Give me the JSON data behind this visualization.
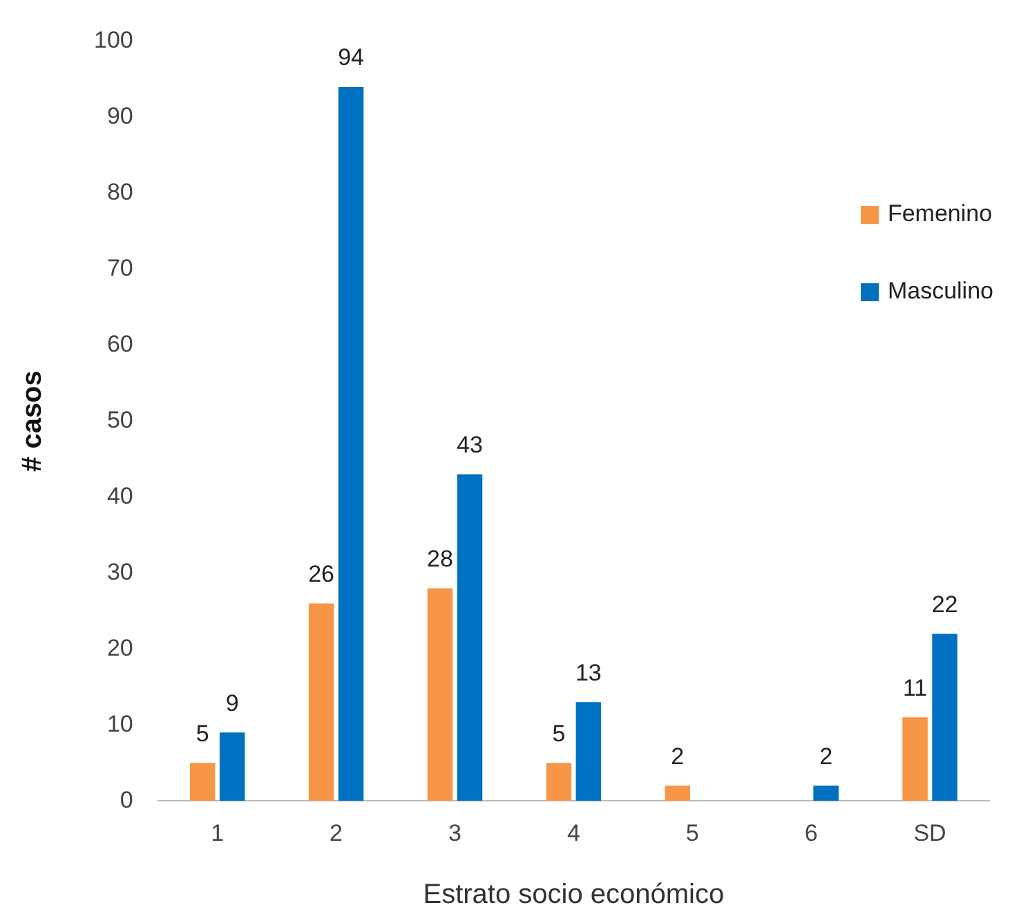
{
  "chart_data": {
    "type": "bar",
    "xlabel": "Estrato socio económico",
    "ylabel": "# casos",
    "categories": [
      "1",
      "2",
      "3",
      "4",
      "5",
      "6",
      "SD"
    ],
    "series": [
      {
        "name": "Femenino",
        "color": "#f79646",
        "values": [
          5,
          26,
          28,
          5,
          2,
          null,
          11
        ]
      },
      {
        "name": "Masculino",
        "color": "#0070c0",
        "values": [
          9,
          94,
          43,
          13,
          null,
          2,
          22
        ]
      }
    ],
    "ylim": [
      0,
      100
    ],
    "yticks": [
      0,
      10,
      20,
      30,
      40,
      50,
      60,
      70,
      80,
      90,
      100
    ],
    "grid": false,
    "legend": "right",
    "data_labels": true
  }
}
